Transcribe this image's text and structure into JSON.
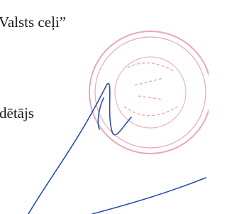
{
  "document": {
    "lines": [
      "Valsts ceļi”",
      "dētājs"
    ]
  }
}
